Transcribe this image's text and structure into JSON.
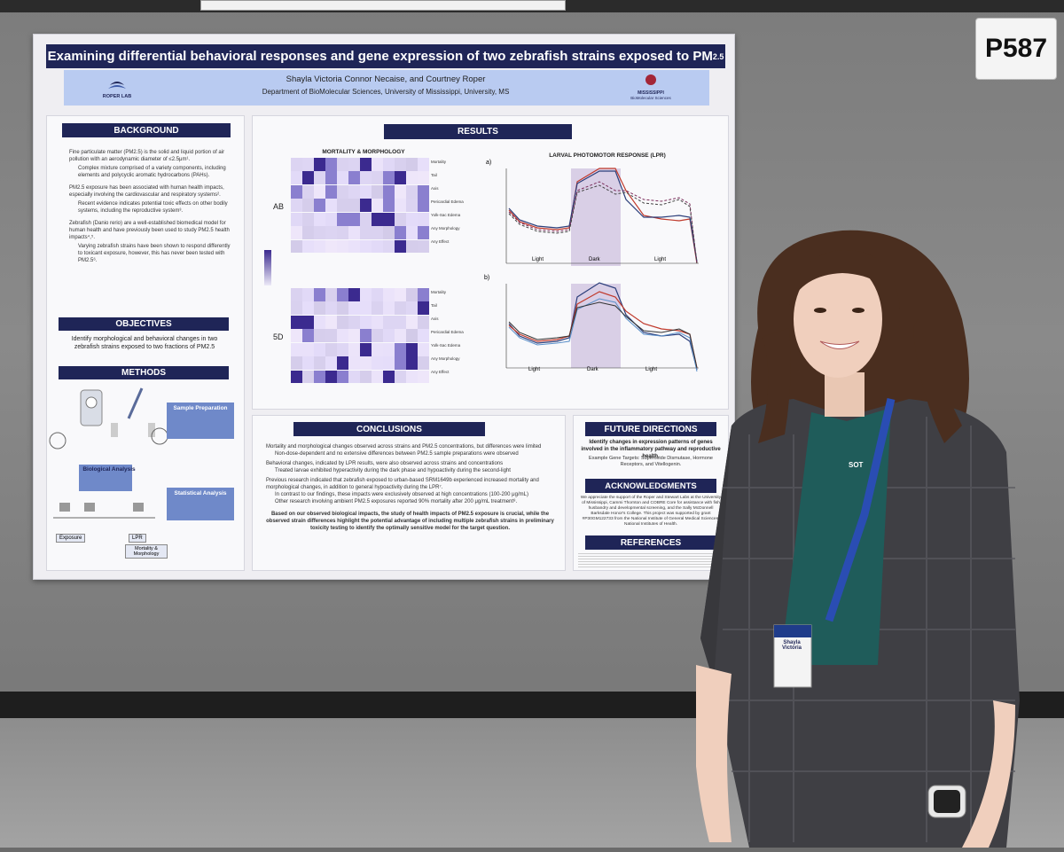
{
  "booth": {
    "label": "P587"
  },
  "poster": {
    "title": "Examining differential behavioral responses and gene expression of two zebrafish strains exposed to PM",
    "title_sub": "2.5",
    "authors": "Shayla Victoria Connor Necaise, and Courtney Roper",
    "department": "Department of BioMolecular Sciences, University of Mississippi, University, MS",
    "logo_left": "ROPER LAB",
    "logo_right": "MISSISSIPPI",
    "logo_right_sub": "BioMolecular Sciences",
    "background": {
      "header": "BACKGROUND",
      "p1": "Fine particulate matter (PM2.5) is the solid and liquid portion of air pollution with an aerodynamic diameter of ≤2.5μm¹.",
      "p1a": "Complex mixture comprised of a variety components, including elements and polycyclic aromatic hydrocarbons (PAHs).",
      "p2": "PM2.5 exposure has been associated with human health impacts, especially involving the cardiovascular and respiratory systems².",
      "p2a": "Recent evidence indicates potential toxic effects on other bodily systems, including the reproductive system³.",
      "p3": "Zebrafish (Danio rerio) are a well-established biomedical model for human health and have previously been used to study PM2.5 health impacts⁴,⁵.",
      "p3a": "Varying zebrafish strains have been shown to respond differently to toxicant exposure, however, this has never been tested with PM2.5⁶."
    },
    "objectives": {
      "header": "OBJECTIVES",
      "text": "Identify morphological and behavioral changes in two zebrafish strains exposed to two fractions of PM2.5"
    },
    "methods": {
      "header": "METHODS",
      "sample_prep": "Sample Preparation",
      "bio_analysis": "Biological Analysis",
      "stat_analysis": "Statistical Analysis",
      "exposure": "Exposure",
      "lpr": "LPR",
      "mortality": "Mortality & Morphology"
    },
    "results": {
      "header": "RESULTS",
      "heatmap_title": "MORTALITY & MORPHOLOGY",
      "strain_top": "AB",
      "strain_bottom": "5D",
      "endpoints": [
        "Mortality",
        "Tail",
        "Axis",
        "Pericardial Edema",
        "Yolk-Sac Edema",
        "Any Morphology",
        "Any Effect"
      ],
      "lpr_title": "LARVAL PHOTOMOTOR RESPONSE (LPR)",
      "panel_a": "a)",
      "panel_b": "b)",
      "light": "Light",
      "dark": "Dark"
    },
    "conclusions": {
      "header": "CONCLUSIONS",
      "b1": "Mortality and morphological changes observed across strains and PM2.5 concentrations, but differences were limited",
      "b1a": "Non-dose-dependent and no extensive differences between PM2.5 sample preparations were observed",
      "b2": "Behavioral changes, indicated by LPR results, were also observed across strains and concentrations",
      "b2a": "Treated larvae exhibited hyperactivity during the dark phase and hypoactivity during the second-light",
      "b3": "Previous research indicated that zebrafish exposed to urban-based SRM1649b experienced increased mortality and morphological changes, in addition to general hypoactivity during the LPR⁷.",
      "b3a": "In contrast to our findings, these impacts were exclusively observed at high concentrations (100-200 μg/mL)",
      "b3b": "Other research involving ambient PM2.5 exposures reported 90% mortality after 200 μg/mL treatment⁸.",
      "closing": "Based on our observed biological impacts, the study of health impacts of PM2.5 exposure is crucial, while the observed strain differences highlight the potential advantage of including multiple zebrafish strains in preliminary toxicity testing to identify the optimally sensitive model for the target question."
    },
    "future": {
      "header": "FUTURE DIRECTIONS",
      "text": "Identify changes in expression patterns of genes involved in the inflammatory pathway and reproductive health.",
      "targets": "Example Gene Targets: Superoxide Dismutase, Hormone Receptors, and Vitellogenin."
    },
    "acknowledgments": {
      "header": "ACKNOWLEDGMENTS",
      "text": "We appreciate the support of the Roper and Stewart Labs at the University of Mississippi, Cammi Thornton and COBRE Core for assistance with fish husbandry and developmental screening, and the Sally McDonnell Barksdale Honor's College. This project was supported by grant #P30GM122733 from the National Institute of General Medical Sciences, National Institutes of Health."
    },
    "references": {
      "header": "REFERENCES"
    }
  },
  "badge": {
    "name": "Shayla Victoria",
    "lanyard": "SOT"
  },
  "colors": {
    "navy": "#1f2557",
    "band": "#b9cbf1",
    "heat_dark": "#3b2a8f",
    "heat_light": "#c9c3e6"
  }
}
